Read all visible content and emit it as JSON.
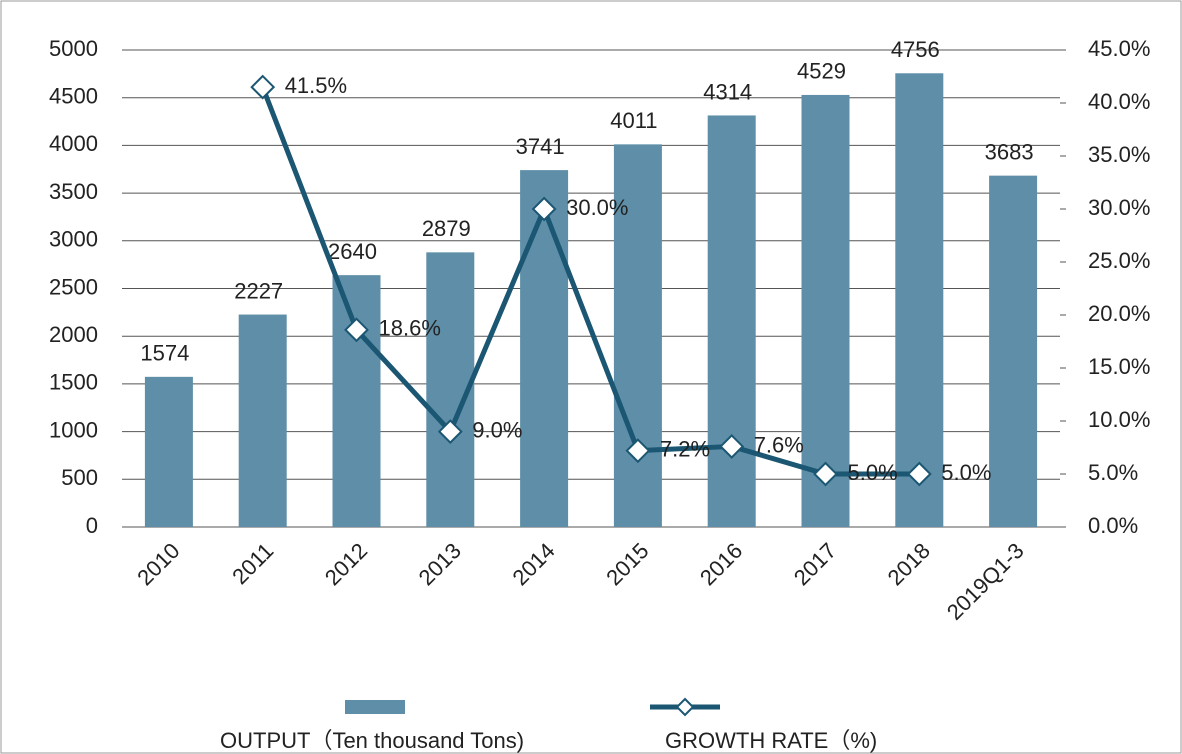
{
  "chart_data": {
    "type": "bar-line",
    "categories": [
      "2010",
      "2011",
      "2012",
      "2013",
      "2014",
      "2015",
      "2016",
      "2017",
      "2018",
      "2019Q1-3"
    ],
    "series": [
      {
        "name": "OUTPUT（Ten thousand Tons)",
        "type": "bar",
        "color": "#5f8fa8",
        "values": [
          1574,
          2227,
          2640,
          2879,
          3741,
          4011,
          4314,
          4529,
          4756,
          3683
        ]
      },
      {
        "name": "GROWTH RATE（%)",
        "type": "line",
        "axis": "y2",
        "color": "#1b5672",
        "values": [
          null,
          41.5,
          18.6,
          9.0,
          30.0,
          7.2,
          7.6,
          5.0,
          5.0,
          null
        ],
        "value_labels": [
          null,
          "41.5%",
          "18.6%",
          "9.0%",
          "30.0%",
          "7.2%",
          "7.6%",
          "5.0%",
          "5.0%",
          null
        ]
      }
    ],
    "ylim": [
      0,
      5000
    ],
    "yticks": [
      0,
      500,
      1000,
      1500,
      2000,
      2500,
      3000,
      3500,
      4000,
      4500,
      5000
    ],
    "y2lim": [
      0,
      45
    ],
    "y2ticks": [
      {
        "value": 0,
        "label": "0.0%"
      },
      {
        "value": 5,
        "label": "5.0%"
      },
      {
        "value": 10,
        "label": "10.0%"
      },
      {
        "value": 15,
        "label": "15.0%"
      },
      {
        "value": 20,
        "label": "20.0%"
      },
      {
        "value": 25,
        "label": "25.0%"
      },
      {
        "value": 30,
        "label": "30.0%"
      },
      {
        "value": 35,
        "label": "35.0%"
      },
      {
        "value": 40,
        "label": "40.0%"
      },
      {
        "value": 45,
        "label": "45.0%"
      }
    ],
    "grid": true,
    "legend": "bottom"
  }
}
